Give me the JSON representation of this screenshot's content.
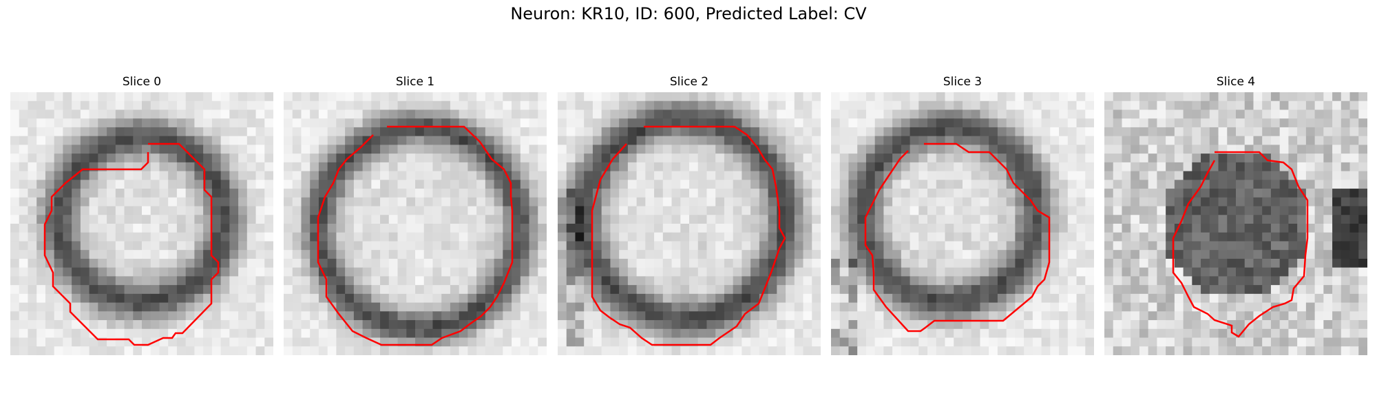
{
  "figure": {
    "title": "Neuron: KR10, ID: 600, Predicted Label: CV"
  },
  "panels": [
    {
      "title": "Slice 0",
      "tone": "light-center-dark-ring"
    },
    {
      "title": "Slice 1",
      "tone": "light-center-dark-ring"
    },
    {
      "title": "Slice 2",
      "tone": "light-center-dark-ring"
    },
    {
      "title": "Slice 3",
      "tone": "light-center-dark-ring"
    },
    {
      "title": "Slice 4",
      "tone": "dark-blob"
    }
  ],
  "colors": {
    "contour": "#ff0000",
    "background": "#ffffff"
  }
}
